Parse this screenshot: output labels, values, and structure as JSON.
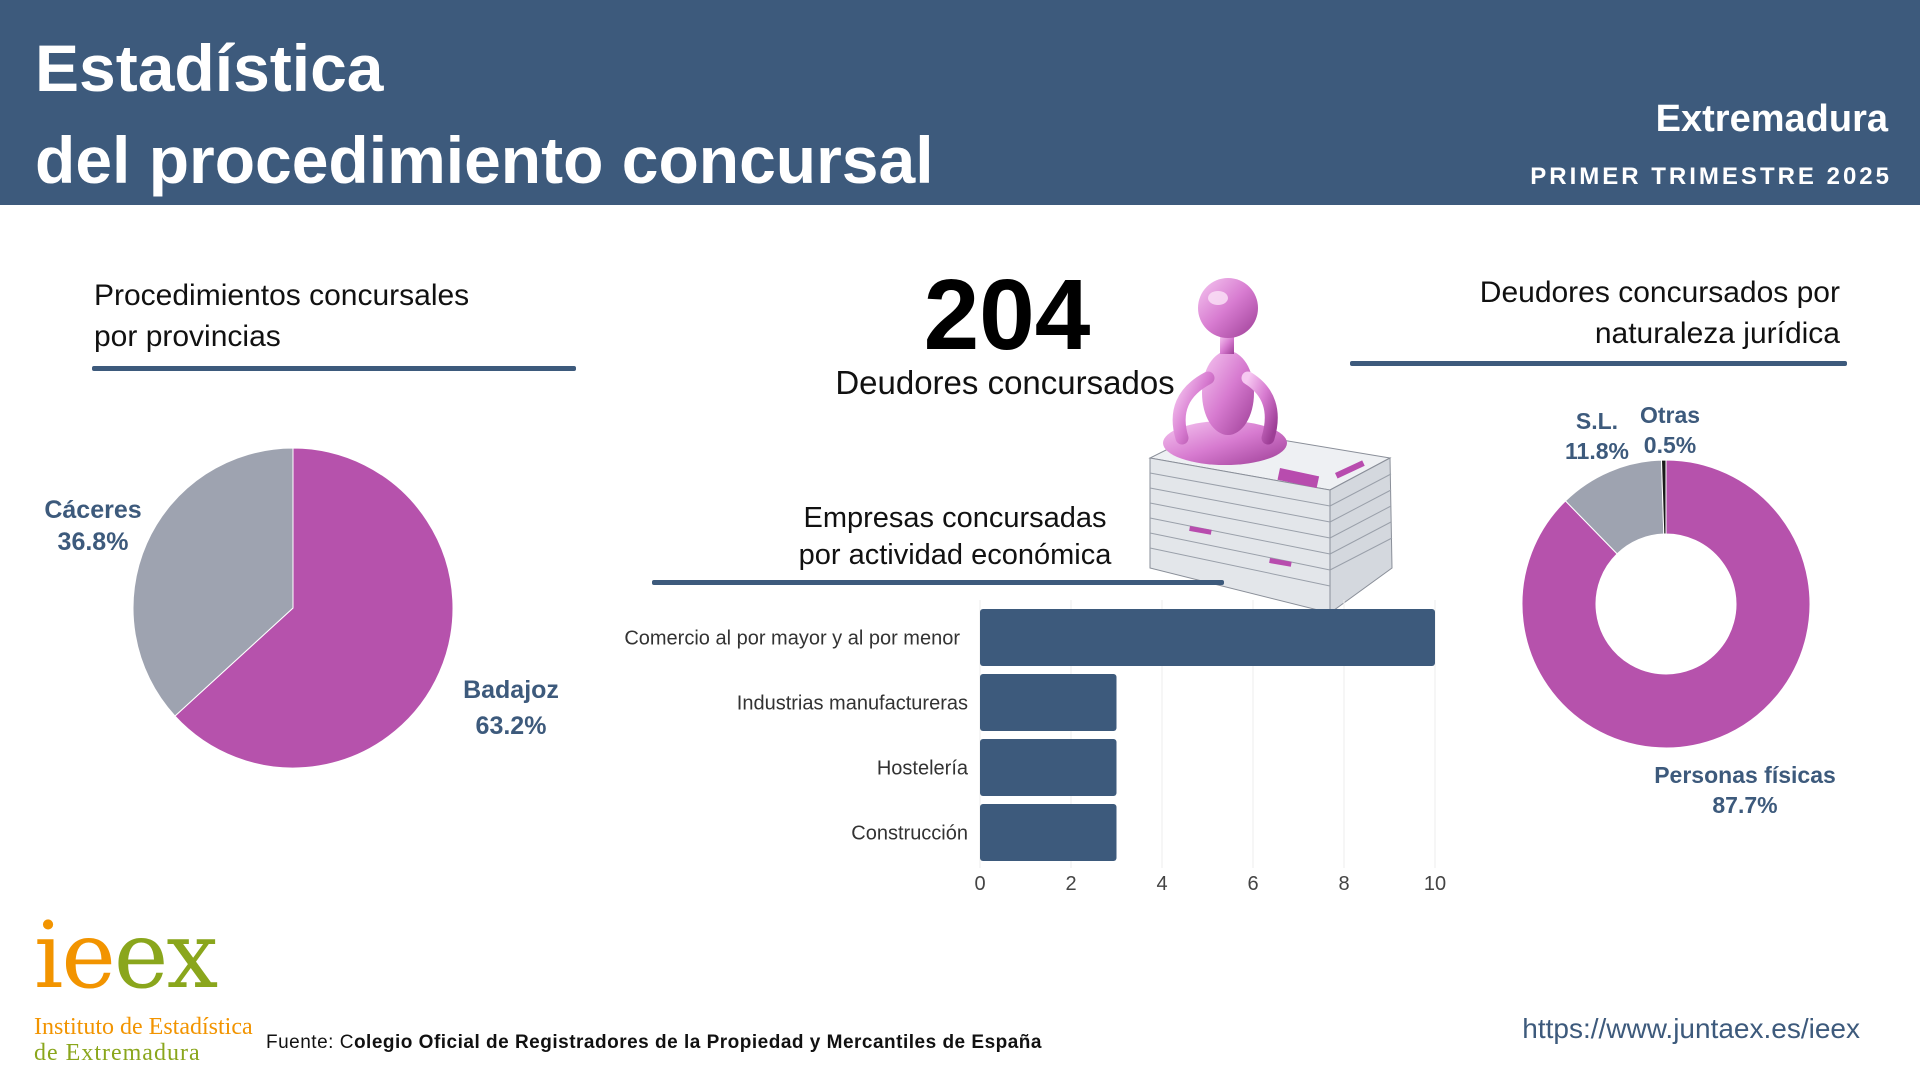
{
  "header": {
    "title_line1": "Estadística",
    "title_line2": "del procedimiento concursal",
    "region": "Extremadura",
    "period": "PRIMER TRIMESTRE 2025",
    "background_color": "#3d5a7c"
  },
  "provinces_section": {
    "title_line1": "Procedimientos concursales",
    "title_line2": "por provincias"
  },
  "headline": {
    "number": "204",
    "label": "Deudores concursados"
  },
  "activity_section": {
    "title_line1": "Empresas concursadas",
    "title_line2": "por actividad económica"
  },
  "legal_section": {
    "title_line1": "Deudores concursados por",
    "title_line2": "naturaleza jurídica"
  },
  "illustration": {
    "icon": "pink-figure-meditating-on-stack-of-bills-icon"
  },
  "chart_data": [
    {
      "type": "pie",
      "labels": [
        "Badajoz",
        "Cáceres"
      ],
      "values": [
        63.2,
        36.8
      ],
      "display_values": [
        "63.2%",
        "36.8%"
      ],
      "colors": [
        "#b652ac",
        "#9ea3b0"
      ]
    },
    {
      "type": "bar",
      "orientation": "horizontal",
      "categories": [
        "Comercio al por mayor y al por menor",
        "Industrias manufactureras",
        "Hostelería",
        "Construcción"
      ],
      "values": [
        10,
        3,
        3,
        3
      ],
      "xlim": [
        0,
        10
      ],
      "xticks": [
        "0",
        "2",
        "4",
        "6",
        "8",
        "10"
      ],
      "grid": true,
      "color": "#3d5a7c"
    },
    {
      "type": "pie",
      "donut": true,
      "labels": [
        "Personas físicas",
        "S.L.",
        "Otras"
      ],
      "values": [
        87.7,
        11.8,
        0.5
      ],
      "display_values": [
        "87.7%",
        "11.8%",
        "0.5%"
      ],
      "colors": [
        "#b652ac",
        "#9ea3b0",
        "#1a1a1a"
      ]
    }
  ],
  "footer": {
    "logo_word_part1": "ie",
    "logo_word_part2": "ex",
    "logo_line1": "Instituto de Estadística",
    "logo_line2": "de Extremadura",
    "source_prefix": "Fuente: C",
    "source_text": "olegio Oficial de Registradores de la Propiedad y Mercantiles de España",
    "url": "https://www.juntaex.es/ieex"
  }
}
